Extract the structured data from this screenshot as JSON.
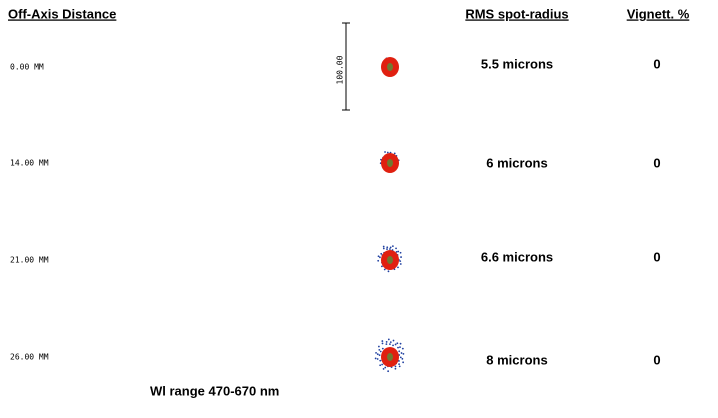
{
  "header": {
    "distance": "Off-Axis Distance",
    "rms": "RMS spot-radius",
    "vignetting": "Vignett. %"
  },
  "scale_bar": {
    "label": "100.00"
  },
  "rows": [
    {
      "distance": "0.00 MM",
      "rms": "5.5 microns",
      "vignetting": "0"
    },
    {
      "distance": "14.00 MM",
      "rms": "6 microns",
      "vignetting": "0"
    },
    {
      "distance": "21.00 MM",
      "rms": "6.6 microns",
      "vignetting": "0"
    },
    {
      "distance": "26.00 MM",
      "rms": "8 microns",
      "vignetting": "0"
    }
  ],
  "footer": "Wl range 470-670 nm"
}
